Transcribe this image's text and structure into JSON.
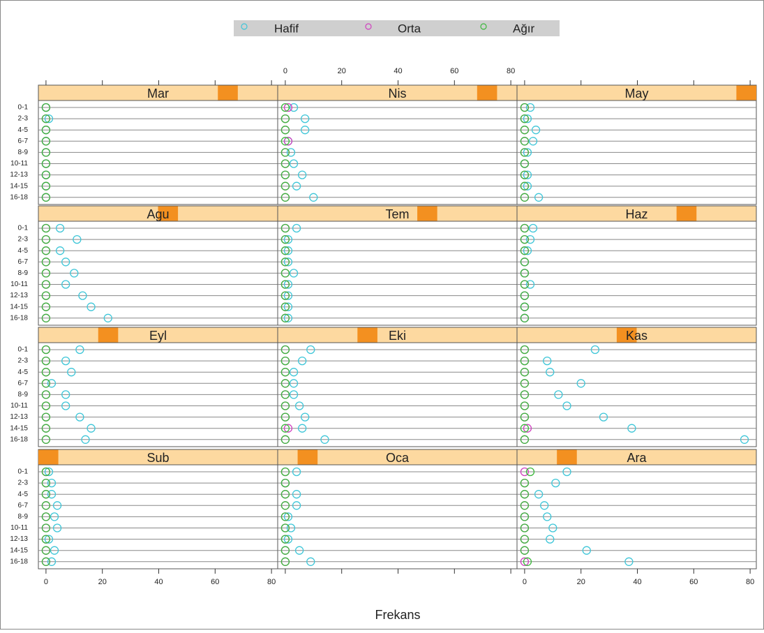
{
  "chart_data": {
    "type": "dotplot",
    "xlabel": "Frekans",
    "categories": [
      "0-1",
      "2-3",
      "4-5",
      "6-7",
      "8-9",
      "10-11",
      "12-13",
      "14-15",
      "16-18"
    ],
    "series": [
      {
        "name": "Hafif",
        "color": "#3ec6d8"
      },
      {
        "name": "Orta",
        "color": "#d040c0"
      },
      {
        "name": "Ağır",
        "color": "#3cb83c"
      }
    ],
    "xlim": [
      -2.7,
      82.2
    ],
    "xticks": [
      0,
      20,
      40,
      60,
      80
    ],
    "grid": true,
    "panels": [
      {
        "title": "Sub",
        "values": [
          [
            1,
            2,
            2,
            4,
            3,
            4,
            1,
            3,
            2
          ],
          [
            0,
            0,
            0,
            0,
            0,
            0,
            0,
            0,
            0
          ],
          [
            0,
            0,
            0,
            0,
            0,
            0,
            0,
            0,
            0
          ]
        ]
      },
      {
        "title": "Oca",
        "values": [
          [
            4,
            0,
            4,
            4,
            1,
            2,
            1,
            5,
            9
          ],
          [
            0,
            0,
            0,
            0,
            0,
            0,
            0,
            0,
            0
          ],
          [
            0,
            0,
            0,
            0,
            0,
            0,
            0,
            0,
            0
          ]
        ]
      },
      {
        "title": "Ara",
        "values": [
          [
            15,
            11,
            5,
            7,
            8,
            10,
            9,
            22,
            37
          ],
          [
            0,
            0,
            0,
            0,
            0,
            0,
            0,
            0,
            0
          ],
          [
            2,
            0,
            0,
            0,
            0,
            0,
            0,
            0,
            1
          ]
        ]
      },
      {
        "title": "Eyl",
        "values": [
          [
            12,
            7,
            9,
            2,
            7,
            7,
            12,
            16,
            14
          ],
          [
            0,
            0,
            0,
            0,
            0,
            0,
            0,
            0,
            0
          ],
          [
            0,
            0,
            0,
            0,
            0,
            0,
            0,
            0,
            0
          ]
        ]
      },
      {
        "title": "Eki",
        "values": [
          [
            9,
            6,
            3,
            3,
            3,
            5,
            7,
            6,
            14
          ],
          [
            0,
            0,
            0,
            0,
            0,
            0,
            0,
            1,
            0
          ],
          [
            0,
            0,
            0,
            0,
            0,
            0,
            0,
            0,
            0
          ]
        ]
      },
      {
        "title": "Kas",
        "values": [
          [
            25,
            8,
            9,
            20,
            12,
            15,
            28,
            38,
            78
          ],
          [
            0,
            0,
            0,
            0,
            0,
            0,
            0,
            1,
            0
          ],
          [
            0,
            0,
            0,
            0,
            0,
            0,
            0,
            0,
            0
          ]
        ]
      },
      {
        "title": "Agu",
        "values": [
          [
            5,
            11,
            5,
            7,
            10,
            7,
            13,
            16,
            22
          ],
          [
            0,
            0,
            0,
            0,
            0,
            0,
            0,
            0,
            0
          ],
          [
            0,
            0,
            0,
            0,
            0,
            0,
            0,
            0,
            0
          ]
        ]
      },
      {
        "title": "Tem",
        "values": [
          [
            4,
            1,
            1,
            1,
            3,
            1,
            1,
            1,
            1
          ],
          [
            0,
            0,
            0,
            0,
            0,
            0,
            0,
            0,
            0
          ],
          [
            0,
            0,
            0,
            0,
            0,
            0,
            0,
            0,
            0
          ]
        ]
      },
      {
        "title": "Haz",
        "values": [
          [
            3,
            2,
            1,
            0,
            0,
            2,
            0,
            0,
            0
          ],
          [
            0,
            0,
            0,
            0,
            0,
            0,
            0,
            0,
            0
          ],
          [
            0,
            0,
            0,
            0,
            0,
            0,
            0,
            0,
            0
          ]
        ]
      },
      {
        "title": "Mar",
        "values": [
          [
            0,
            1,
            0,
            0,
            0,
            0,
            0,
            0,
            0
          ],
          [
            0,
            0,
            0,
            0,
            0,
            0,
            0,
            0,
            0
          ],
          [
            0,
            0,
            0,
            0,
            0,
            0,
            0,
            0,
            0
          ]
        ]
      },
      {
        "title": "Nis",
        "values": [
          [
            3,
            7,
            7,
            1,
            2,
            3,
            6,
            4,
            10
          ],
          [
            1,
            0,
            0,
            1,
            0,
            0,
            0,
            0,
            0
          ],
          [
            0,
            0,
            0,
            0,
            0,
            0,
            0,
            0,
            0
          ]
        ]
      },
      {
        "title": "May",
        "values": [
          [
            2,
            1,
            4,
            3,
            1,
            0,
            1,
            1,
            5
          ],
          [
            0,
            0,
            0,
            0,
            0,
            0,
            0,
            0,
            0
          ],
          [
            0,
            0,
            0,
            0,
            0,
            0,
            0,
            0,
            0
          ]
        ]
      }
    ]
  }
}
